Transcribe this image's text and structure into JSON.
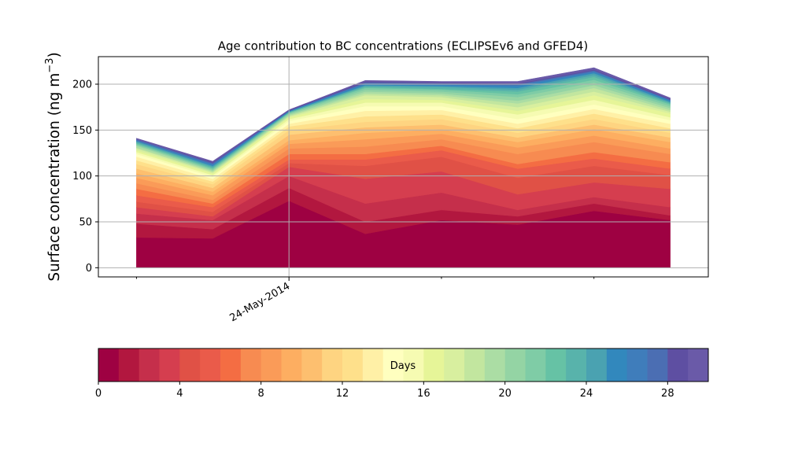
{
  "chart_data": {
    "type": "area",
    "stacked": true,
    "title": "Age contribution to BC concentrations (ECLIPSEv6 and GFED4)",
    "ylabel_main": "Surface concentration (ng m",
    "ylabel_exp": "−3",
    "ylabel_close": ")",
    "xlabel": "",
    "xtick_labels": [
      "24-May-2014"
    ],
    "x": [
      "2014-05-23",
      "2014-05-23T12:00",
      "2014-05-24",
      "2014-05-24T12:00",
      "2014-05-25",
      "2014-05-25T12:00",
      "2014-05-26",
      "2014-05-26T12:00"
    ],
    "xlim": [
      "2014-05-22T18:00",
      "2014-05-26T18:00"
    ],
    "ylim": [
      -10,
      230
    ],
    "yticks": [
      0,
      50,
      100,
      150,
      200
    ],
    "grid": true,
    "totals": [
      141,
      116,
      172,
      204,
      203,
      203,
      218,
      185
    ],
    "series_values": [
      [
        33,
        32,
        73,
        37,
        52,
        47,
        62,
        52
      ],
      [
        48,
        42,
        87,
        50,
        63,
        56,
        70,
        57
      ],
      [
        59,
        52,
        100,
        70,
        82,
        63,
        77,
        66
      ],
      [
        66,
        56,
        110,
        97,
        105,
        80,
        93,
        86
      ],
      [
        72,
        61,
        114,
        111,
        121,
        98,
        111,
        101
      ],
      [
        79,
        66,
        118,
        118,
        128,
        108,
        119,
        108
      ],
      [
        86,
        70,
        124,
        124,
        133,
        113,
        126,
        115
      ],
      [
        92,
        74,
        130,
        132,
        140,
        124,
        137,
        124
      ],
      [
        98,
        79,
        135,
        140,
        146,
        131,
        144,
        130
      ],
      [
        103,
        83,
        139,
        147,
        151,
        137,
        151,
        137
      ],
      [
        108,
        87,
        145,
        153,
        156,
        142,
        156,
        142
      ],
      [
        113,
        91,
        150,
        159,
        162,
        147,
        162,
        147
      ],
      [
        117,
        94,
        154,
        165,
        167,
        152,
        168,
        152
      ],
      [
        121,
        97,
        157,
        171,
        172,
        157,
        173,
        157
      ],
      [
        124,
        99,
        160,
        176,
        176,
        162,
        178,
        161
      ],
      [
        126,
        101,
        162,
        180,
        180,
        167,
        183,
        164
      ],
      [
        128,
        103,
        164,
        184,
        183,
        171,
        188,
        168
      ],
      [
        130,
        104,
        165,
        188,
        186,
        175,
        192,
        170
      ],
      [
        131,
        105,
        166,
        190,
        188,
        179,
        196,
        172
      ],
      [
        133,
        106,
        167,
        192,
        190,
        182,
        199,
        174
      ],
      [
        134,
        107,
        168,
        194,
        192,
        186,
        202,
        176
      ],
      [
        135,
        108,
        169,
        196,
        194,
        189,
        205,
        178
      ],
      [
        136,
        109,
        169,
        197,
        195,
        192,
        208,
        179
      ],
      [
        137,
        110,
        170,
        198,
        197,
        194,
        210,
        180
      ],
      [
        138,
        111,
        170,
        199,
        198,
        196,
        212,
        181
      ],
      [
        138,
        112,
        171,
        200,
        199,
        198,
        213,
        182
      ],
      [
        139,
        113,
        171,
        201,
        200,
        199,
        214,
        183
      ],
      [
        140,
        114,
        171,
        202,
        201,
        200,
        215,
        183
      ],
      [
        140,
        115,
        172,
        203,
        202,
        201,
        216,
        184
      ],
      [
        141,
        116,
        172,
        204,
        203,
        203,
        218,
        185
      ]
    ],
    "colors": [
      "#9e0142",
      "#b2173f",
      "#c52f4b",
      "#d53e4f",
      "#e05146",
      "#ea5b4a",
      "#f46d43",
      "#f78b51",
      "#fa9b58",
      "#fdae61",
      "#fdbf6f",
      "#fed481",
      "#fee08b",
      "#fff0a6",
      "#ffffbf",
      "#f6fbb2",
      "#e6f598",
      "#d8ef9f",
      "#c2e69f",
      "#abdda4",
      "#94d4a4",
      "#7fcca6",
      "#66c2a5",
      "#58b3ab",
      "#4aa2b1",
      "#3288bd",
      "#3f7dbb",
      "#4b6eb3",
      "#5e4fa2",
      "#6a5aa8"
    ],
    "colorbar": {
      "label": "Days",
      "range": [
        0,
        30
      ],
      "ticks": [
        "0",
        "4",
        "8",
        "12",
        "16",
        "20",
        "24",
        "28"
      ]
    }
  }
}
